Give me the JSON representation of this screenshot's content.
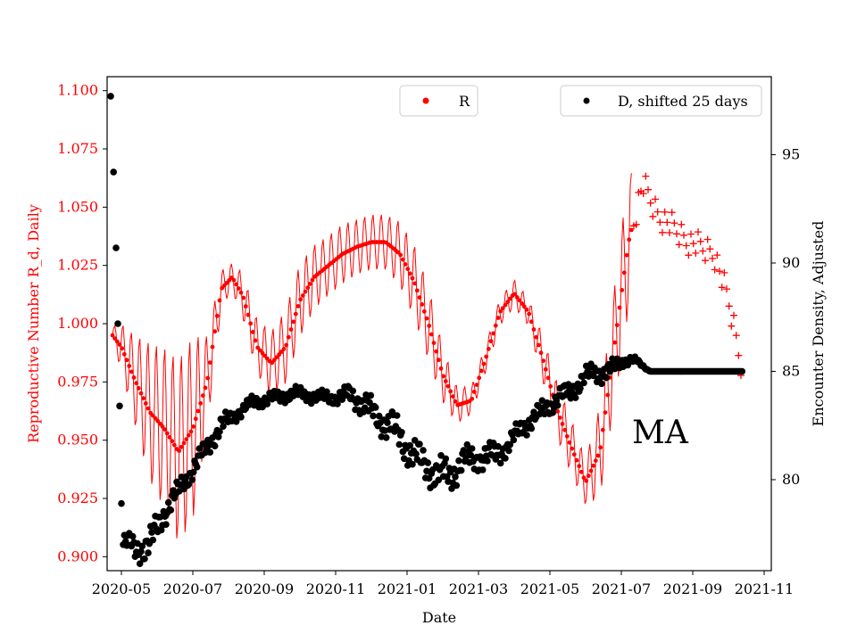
{
  "chart_data": {
    "type": "scatter",
    "x_label": "Date",
    "y_label_left": "Reproductive Number R_d, Daily",
    "y_label_right": "Encounter Density, Adjusted",
    "annotation": "MA",
    "x_ticks": [
      "2020-05",
      "2020-07",
      "2020-09",
      "2020-11",
      "2021-01",
      "2021-03",
      "2021-05",
      "2021-07",
      "2021-09",
      "2021-11"
    ],
    "x_range_months": [
      3.6,
      22.2
    ],
    "y_left_ticks": [
      "0.900",
      "0.925",
      "0.950",
      "0.975",
      "1.000",
      "1.025",
      "1.050",
      "1.075",
      "1.100"
    ],
    "y_left_range": [
      0.894,
      1.106
    ],
    "y_right_ticks": [
      "80",
      "85",
      "90",
      "95"
    ],
    "y_right_range": [
      75.8,
      98.6
    ],
    "legend": [
      {
        "label": "R",
        "color": "#ff0000",
        "location": "top-center"
      },
      {
        "label": "D, shifted 25 days",
        "color": "#000000",
        "location": "top-right"
      }
    ],
    "colors": {
      "r_series": "#ff0000",
      "d_series": "#000000",
      "left_axis": "#ff0000",
      "right_axis": "#000000"
    },
    "r_series": {
      "name": "R",
      "description": "daily reproductive number with oscillation band; months since 2020-01 vs value",
      "x": [
        3.75,
        4.0,
        4.4,
        4.8,
        5.2,
        5.6,
        6.0,
        6.4,
        6.8,
        7.1,
        7.4,
        7.8,
        8.2,
        8.6,
        9.0,
        9.4,
        9.8,
        10.2,
        10.6,
        11.0,
        11.4,
        11.8,
        12.2,
        12.6,
        13.0,
        13.4,
        13.8,
        14.2,
        14.6,
        15.0,
        15.4,
        15.8,
        16.2,
        16.6,
        17.0,
        17.4,
        17.8,
        18.2,
        18.6,
        19.0,
        19.4,
        19.8,
        20.2,
        20.6,
        21.0,
        21.4
      ],
      "y": [
        0.995,
        0.99,
        0.975,
        0.962,
        0.955,
        0.945,
        0.955,
        0.975,
        1.015,
        1.02,
        1.012,
        0.99,
        0.983,
        0.99,
        1.01,
        1.02,
        1.025,
        1.03,
        1.033,
        1.035,
        1.035,
        1.03,
        1.018,
        1.0,
        0.978,
        0.965,
        0.967,
        0.985,
        1.005,
        1.013,
        1.005,
        0.985,
        0.963,
        0.947,
        0.932,
        0.945,
        0.99,
        1.035,
        1.06,
        1.047,
        1.042,
        1.036,
        1.033,
        1.03,
        1.01,
        0.98
      ],
      "spread": [
        0.004,
        0.01,
        0.02,
        0.03,
        0.035,
        0.04,
        0.04,
        0.02,
        0.008,
        0.006,
        0.01,
        0.012,
        0.014,
        0.016,
        0.016,
        0.014,
        0.013,
        0.013,
        0.012,
        0.012,
        0.012,
        0.014,
        0.016,
        0.016,
        0.012,
        0.008,
        0.006,
        0.006,
        0.006,
        0.006,
        0.006,
        0.01,
        0.012,
        0.012,
        0.01,
        0.02,
        0.025,
        0.03,
        0.006,
        0.004,
        0.003,
        0.004,
        0.004,
        0.004,
        0.005,
        0.004
      ]
    },
    "d_series": {
      "name": "D, shifted 25 days",
      "description": "adjusted encounter density; months since 2020-01 vs value",
      "x": [
        3.7,
        3.78,
        3.85,
        3.9,
        3.95,
        4.0,
        4.05,
        4.1,
        4.4,
        4.8,
        5.2,
        5.6,
        6.0,
        6.4,
        6.8,
        7.2,
        7.6,
        8.0,
        8.4,
        8.8,
        9.2,
        9.6,
        10.0,
        10.4,
        10.8,
        11.2,
        11.6,
        12.0,
        12.4,
        12.8,
        13.2,
        13.6,
        14.0,
        14.4,
        14.8,
        15.2,
        15.6,
        16.0,
        16.4,
        16.8,
        17.2,
        17.6,
        18.0,
        18.4,
        18.8,
        19.2,
        19.6,
        20.0,
        20.4,
        20.8,
        21.2,
        21.4
      ],
      "y": [
        97.7,
        94.2,
        90.7,
        87.2,
        83.4,
        78.9,
        77.0,
        77.1,
        76.8,
        77.0,
        78.5,
        79.5,
        80.5,
        81.5,
        82.5,
        83.0,
        83.5,
        83.7,
        83.8,
        84.0,
        83.9,
        83.8,
        83.8,
        83.9,
        83.5,
        82.8,
        82.4,
        81.5,
        80.8,
        80.3,
        80.2,
        80.9,
        81.0,
        81.1,
        81.5,
        82.4,
        82.9,
        83.5,
        83.9,
        84.4,
        85.0,
        84.9,
        85.5,
        85.5,
        85.0,
        85.0,
        85.0,
        85.0,
        85.0,
        85.0,
        85.0,
        85.0
      ],
      "scatter": [
        0.0,
        0.0,
        0.0,
        0.0,
        0.0,
        0.0,
        0.3,
        0.3,
        0.4,
        0.5,
        0.4,
        0.3,
        0.3,
        0.3,
        0.3,
        0.2,
        0.2,
        0.2,
        0.2,
        0.2,
        0.2,
        0.2,
        0.2,
        0.3,
        0.4,
        0.4,
        0.5,
        0.5,
        0.5,
        0.5,
        0.5,
        0.4,
        0.4,
        0.4,
        0.3,
        0.3,
        0.3,
        0.3,
        0.3,
        0.3,
        0.3,
        0.3,
        0.2,
        0.1,
        0.0,
        0.0,
        0.0,
        0.0,
        0.0,
        0.0,
        0.0,
        0.0
      ]
    }
  }
}
